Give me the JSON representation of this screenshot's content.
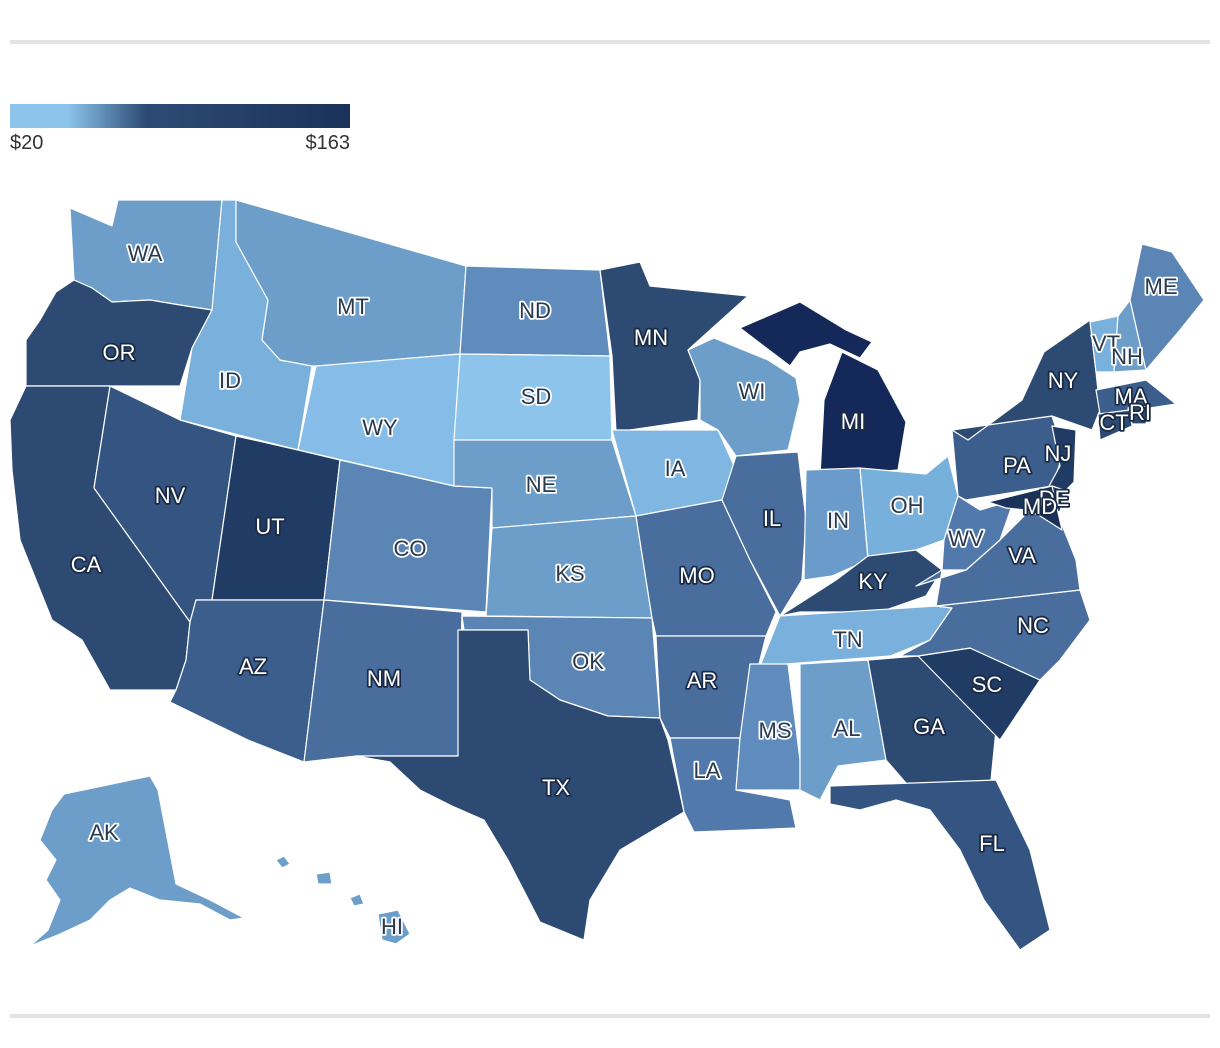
{
  "legend": {
    "min_label": "$20",
    "max_label": "$163",
    "colors": {
      "low": "#8cc4ec",
      "mid": "#2c4b74",
      "high": "#1a325a"
    }
  },
  "states": [
    {
      "code": "WA",
      "fill": "#6c9ec9"
    },
    {
      "code": "OR",
      "fill": "#2c4a72"
    },
    {
      "code": "CA",
      "fill": "#2c4a72"
    },
    {
      "code": "ID",
      "fill": "#7ab0dc"
    },
    {
      "code": "NV",
      "fill": "#345582"
    },
    {
      "code": "MT",
      "fill": "#6c9ec9"
    },
    {
      "code": "WY",
      "fill": "#86bde8"
    },
    {
      "code": "UT",
      "fill": "#203c64"
    },
    {
      "code": "AZ",
      "fill": "#3c5e8c"
    },
    {
      "code": "CO",
      "fill": "#5a85b4"
    },
    {
      "code": "NM",
      "fill": "#496d9c"
    },
    {
      "code": "ND",
      "fill": "#5f8cbc"
    },
    {
      "code": "SD",
      "fill": "#8cc4ec"
    },
    {
      "code": "NE",
      "fill": "#6c9ec9"
    },
    {
      "code": "KS",
      "fill": "#6c9ec9"
    },
    {
      "code": "OK",
      "fill": "#5a85b4"
    },
    {
      "code": "TX",
      "fill": "#2c4a72"
    },
    {
      "code": "MN",
      "fill": "#2c4a72"
    },
    {
      "code": "IA",
      "fill": "#80b6e2"
    },
    {
      "code": "MO",
      "fill": "#496d9c"
    },
    {
      "code": "AR",
      "fill": "#496d9c"
    },
    {
      "code": "LA",
      "fill": "#5279ab"
    },
    {
      "code": "WI",
      "fill": "#6c9ec9"
    },
    {
      "code": "IL",
      "fill": "#496d9c"
    },
    {
      "code": "MI",
      "fill": "#14295a"
    },
    {
      "code": "IN",
      "fill": "#6a9bcb"
    },
    {
      "code": "OH",
      "fill": "#78b0dc"
    },
    {
      "code": "KY",
      "fill": "#2c4a72"
    },
    {
      "code": "TN",
      "fill": "#7ab0dc"
    },
    {
      "code": "MS",
      "fill": "#5f8cbc"
    },
    {
      "code": "AL",
      "fill": "#6c9ec9"
    },
    {
      "code": "GA",
      "fill": "#2c4a72"
    },
    {
      "code": "FL",
      "fill": "#345582"
    },
    {
      "code": "SC",
      "fill": "#203c64"
    },
    {
      "code": "NC",
      "fill": "#496d9c"
    },
    {
      "code": "VA",
      "fill": "#496d9c"
    },
    {
      "code": "WV",
      "fill": "#5279ab"
    },
    {
      "code": "PA",
      "fill": "#3c5e8c"
    },
    {
      "code": "NY",
      "fill": "#2c4a72"
    },
    {
      "code": "VT",
      "fill": "#7ab0dc"
    },
    {
      "code": "NH",
      "fill": "#6c9ec9"
    },
    {
      "code": "ME",
      "fill": "#5a85b4"
    },
    {
      "code": "MA",
      "fill": "#3c5e8c"
    },
    {
      "code": "RI",
      "fill": "#2c4a72"
    },
    {
      "code": "CT",
      "fill": "#2c4a72"
    },
    {
      "code": "NJ",
      "fill": "#203c64"
    },
    {
      "code": "DE",
      "fill": "#203c64"
    },
    {
      "code": "MD",
      "fill": "#1a325a"
    },
    {
      "code": "AK",
      "fill": "#6c9ec9"
    },
    {
      "code": "HI",
      "fill": "#6c9ec9"
    }
  ]
}
